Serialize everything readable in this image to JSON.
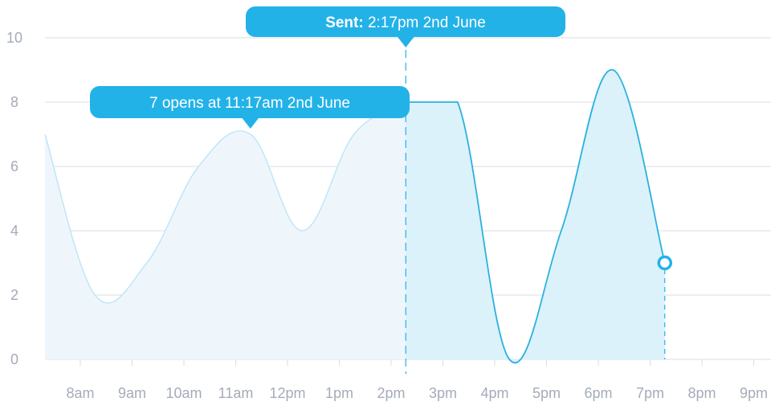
{
  "chart_data": {
    "type": "area",
    "ylim": [
      0,
      10
    ],
    "y_ticks": [
      "0",
      "2",
      "4",
      "6",
      "8",
      "10"
    ],
    "x_tick_labels": [
      "8am",
      "9am",
      "10am",
      "11am",
      "12pm",
      "1pm",
      "2pm",
      "3pm",
      "4pm",
      "5pm",
      "6pm",
      "7pm",
      "8pm",
      "9pm"
    ],
    "grid": true,
    "series": [
      {
        "segment": "before-send",
        "x": [
          "7:17am",
          "8:17am",
          "9:17am",
          "10:17am",
          "11:17am",
          "12:17pm",
          "1:17pm",
          "2:17pm"
        ],
        "values": [
          7,
          2,
          3,
          6,
          7,
          4,
          7,
          8
        ]
      },
      {
        "segment": "after-send",
        "x": [
          "2:17pm",
          "3:17pm",
          "4:17pm",
          "5:17pm",
          "6:17pm",
          "7:17pm"
        ],
        "values": [
          8,
          8,
          0,
          4,
          9,
          3
        ]
      }
    ],
    "sent_marker": {
      "label_bold": "Sent:",
      "label_rest": " 2:17pm 2nd June",
      "x": "2:17pm"
    },
    "hover_tooltip": {
      "text": "7 opens at 11:17am 2nd June",
      "x": "11:17am",
      "value": 7
    },
    "current_point": {
      "x": "7:17pm",
      "value": 3
    },
    "colors": {
      "accent": "#22b2e8",
      "line_before": "#bfe6f6",
      "fill_before": "#eef6fc",
      "line_after": "#2bb1e0",
      "fill_after": "#dbf2fa",
      "grid": "#d9dde3",
      "tick_text": "#a4acb8"
    }
  }
}
